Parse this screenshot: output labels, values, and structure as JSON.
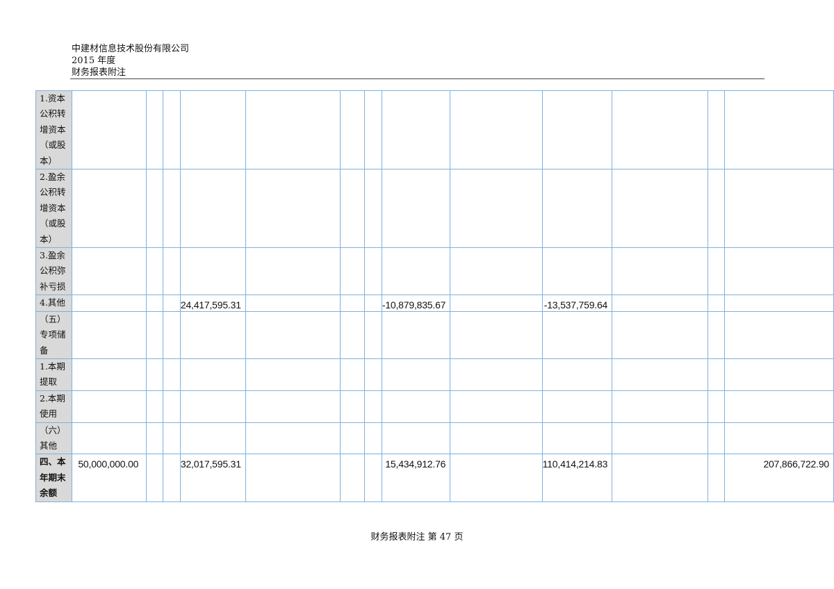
{
  "header": {
    "company": "中建材信息技术股份有限公司",
    "year": "2015 年度",
    "doc_title": "财务报表附注"
  },
  "table": {
    "rows": [
      {
        "label": [
          "1.资本",
          "公积转",
          "增资本",
          "（或股",
          "本）"
        ],
        "cells": [
          "",
          "",
          "",
          "",
          "",
          "",
          "",
          "",
          "",
          "",
          "",
          "",
          ""
        ]
      },
      {
        "label": [
          "2.盈余",
          "公积转",
          "增资本",
          "（或股",
          "本）"
        ],
        "cells": [
          "",
          "",
          "",
          "",
          "",
          "",
          "",
          "",
          "",
          "",
          "",
          "",
          ""
        ]
      },
      {
        "label": [
          "3.盈余",
          "公积弥",
          "补亏损"
        ],
        "cells": [
          "",
          "",
          "",
          "",
          "",
          "",
          "",
          "",
          "",
          "",
          "",
          "",
          ""
        ]
      },
      {
        "label": [
          "4.其他"
        ],
        "cells": [
          "",
          "",
          "",
          "24,417,595.31",
          "",
          "",
          "",
          "-10,879,835.67",
          "",
          "-13,537,759.64",
          "",
          "",
          ""
        ]
      },
      {
        "label": [
          "（五）",
          "专项储",
          "备"
        ],
        "cells": [
          "",
          "",
          "",
          "",
          "",
          "",
          "",
          "",
          "",
          "",
          "",
          "",
          ""
        ]
      },
      {
        "label": [
          "1.本期",
          "提取"
        ],
        "cells": [
          "",
          "",
          "",
          "",
          "",
          "",
          "",
          "",
          "",
          "",
          "",
          "",
          ""
        ]
      },
      {
        "label": [
          "2.本期",
          "使用"
        ],
        "cells": [
          "",
          "",
          "",
          "",
          "",
          "",
          "",
          "",
          "",
          "",
          "",
          "",
          ""
        ]
      },
      {
        "label": [
          "（六）",
          "其他"
        ],
        "cells": [
          "",
          "",
          "",
          "",
          "",
          "",
          "",
          "",
          "",
          "",
          "",
          "",
          ""
        ]
      },
      {
        "label": [
          "四、本",
          "年期末",
          "余额"
        ],
        "bold": true,
        "cells": [
          "50,000,000.00",
          "",
          "",
          "32,017,595.31",
          "",
          "",
          "",
          "15,434,912.76",
          "",
          "110,414,214.83",
          "",
          "",
          "207,866,722.90"
        ]
      }
    ]
  },
  "footer": {
    "text": "财务报表附注 第 47 页"
  }
}
